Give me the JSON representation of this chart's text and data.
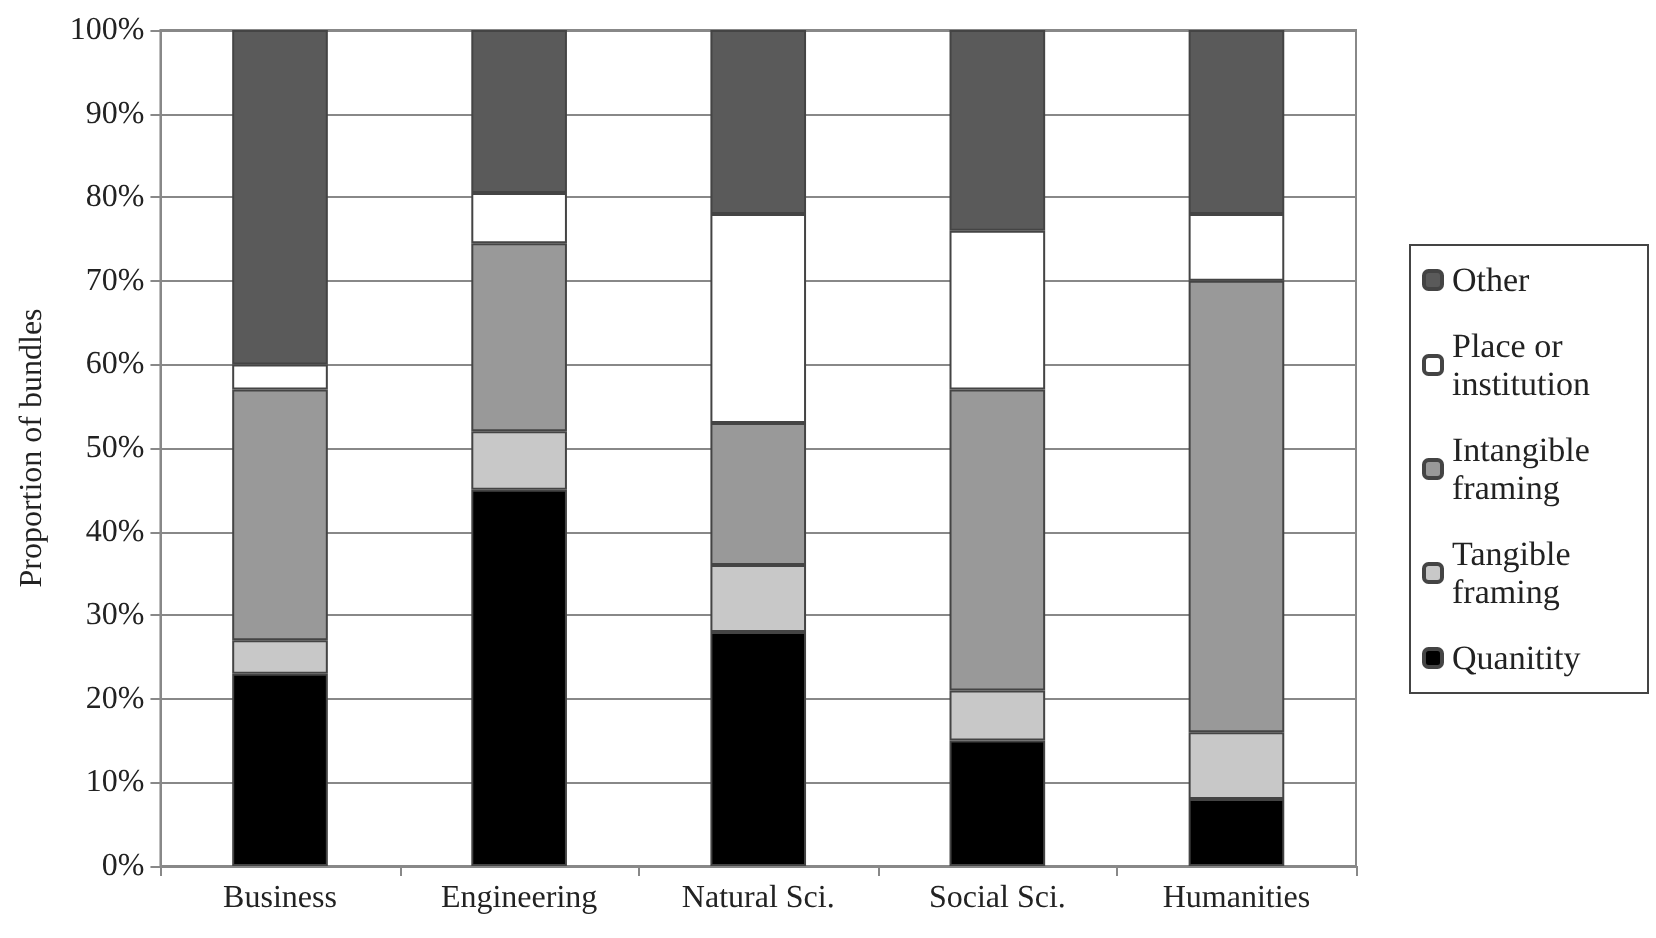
{
  "chart_data": {
    "type": "bar",
    "stacked": true,
    "ylabel": "Proportion of bundles",
    "categories": [
      "Business",
      "Engineering",
      "Natural Sci.",
      "Social Sci.",
      "Humanities"
    ],
    "series": [
      {
        "name": "Quanitity",
        "color": "#000000",
        "values": [
          23,
          45,
          28,
          15,
          8
        ]
      },
      {
        "name": "Tangible framing",
        "color": "#c8c8c8",
        "values": [
          4,
          7,
          8,
          6,
          8
        ]
      },
      {
        "name": "Intangible framing",
        "color": "#999999",
        "values": [
          30,
          22.5,
          17,
          36,
          54
        ]
      },
      {
        "name": "Place or institution",
        "color": "#ffffff",
        "values": [
          3,
          6,
          25,
          19,
          8
        ]
      },
      {
        "name": "Other",
        "color": "#5a5a5a",
        "values": [
          40,
          19.5,
          22,
          24,
          22
        ]
      }
    ],
    "ylim": [
      0,
      100
    ],
    "yticks": [
      {
        "value": 0,
        "label": "0%"
      },
      {
        "value": 10,
        "label": "10%"
      },
      {
        "value": 20,
        "label": "20%"
      },
      {
        "value": 30,
        "label": "30%"
      },
      {
        "value": 40,
        "label": "40%"
      },
      {
        "value": 50,
        "label": "50%"
      },
      {
        "value": 60,
        "label": "60%"
      },
      {
        "value": 70,
        "label": "70%"
      },
      {
        "value": 80,
        "label": "80%"
      },
      {
        "value": 90,
        "label": "90%"
      },
      {
        "value": 100,
        "label": "100%"
      }
    ],
    "grid": "y",
    "legend": "right"
  }
}
